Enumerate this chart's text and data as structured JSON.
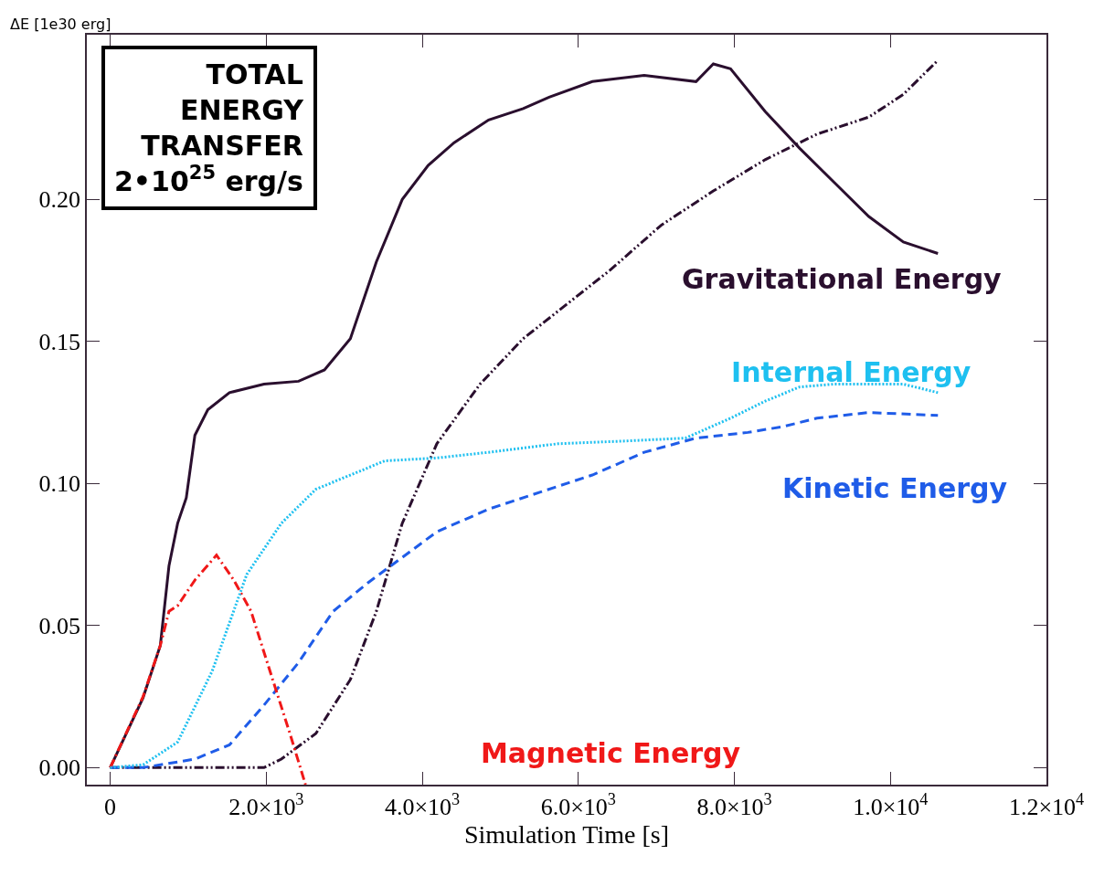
{
  "chart_data": {
    "type": "line",
    "xlabel": "Simulation Time [s]",
    "ylabel": "ΔE [1e30 erg]",
    "xlim": [
      -300,
      12000
    ],
    "ylim": [
      -0.006,
      0.258
    ],
    "xticks": [
      0,
      {
        "value": 2000,
        "label": "2.0×10$^{3}$"
      },
      {
        "value": 4000,
        "label": "4.0×10$^{3}$"
      },
      {
        "value": 6000,
        "label": "6.0×10$^{3}$"
      },
      {
        "value": 8000,
        "label": "8.0×10$^{3}$"
      },
      {
        "value": 10000,
        "label": "1.0×10$^{4}$"
      },
      {
        "value": 12000,
        "label": "1.2×10$^{4}$"
      }
    ],
    "yticks": [
      {
        "value": 0,
        "label": "0.00"
      },
      {
        "value": 0.05,
        "label": "0.05"
      },
      {
        "value": 0.1,
        "label": "0.10"
      },
      {
        "value": 0.15,
        "label": "0.15"
      },
      {
        "value": 0.2,
        "label": "0.20"
      }
    ],
    "grid": false,
    "legend": false,
    "marker": "none",
    "annotations": [
      "TOTAL ENERGY TRANSFER",
      "2•10$^{25}$ erg/s"
    ],
    "series": [
      {
        "color": "#2a0f2e",
        "line_style": "solid",
        "x": [
          0,
          421,
          642,
          753,
          864,
          975,
          1085,
          1251,
          1528,
          1971,
          2414,
          2746,
          3078,
          3411,
          3743,
          4075,
          4408,
          4850,
          5293,
          5626,
          6179,
          6844,
          7508,
          7730,
          7951,
          8394,
          8837,
          9280,
          9723,
          10166,
          10609
        ],
        "values": [
          0,
          0.0246,
          0.043,
          0.071,
          0.086,
          0.095,
          0.117,
          0.126,
          0.132,
          0.135,
          0.136,
          0.14,
          0.151,
          0.178,
          0.2,
          0.212,
          0.22,
          0.228,
          0.232,
          0.236,
          0.2415,
          0.2437,
          0.2415,
          0.2477,
          0.246,
          0.231,
          0.218,
          0.206,
          0.194,
          0.185,
          0.181
        ]
      },
      {
        "name": "Gravitational Energy",
        "color": "#2a0f2e",
        "line_style": "dashdotdot",
        "x": [
          0,
          1000,
          1971,
          2193,
          2636,
          3078,
          3411,
          3743,
          4186,
          4740,
          5293,
          5847,
          6401,
          7065,
          7730,
          8394,
          9059,
          9723,
          10166,
          10609
        ],
        "values": [
          0,
          0,
          0,
          0.003,
          0.012,
          0.031,
          0.055,
          0.086,
          0.114,
          0.135,
          0.151,
          0.163,
          0.175,
          0.191,
          0.203,
          0.214,
          0.223,
          0.229,
          0.237,
          0.249
        ]
      },
      {
        "name": "Internal Energy",
        "color": "#1ec0f0",
        "line_style": "dotted",
        "x": [
          0,
          421,
          864,
          1307,
          1750,
          2193,
          2636,
          3078,
          3521,
          4186,
          4850,
          5736,
          6622,
          7373,
          7951,
          8394,
          8837,
          9280,
          9723,
          10166,
          10609
        ],
        "values": [
          0,
          0.001,
          0.009,
          0.034,
          0.068,
          0.086,
          0.098,
          0.103,
          0.108,
          0.109,
          0.111,
          0.114,
          0.115,
          0.116,
          0.123,
          0.129,
          0.134,
          0.135,
          0.135,
          0.135,
          0.132
        ]
      },
      {
        "name": "Kinetic Energy",
        "color": "#1f5ce8",
        "line_style": "dashed",
        "x": [
          0,
          421,
          1085,
          1528,
          1971,
          2414,
          2857,
          3300,
          3743,
          4186,
          4850,
          5515,
          6179,
          6844,
          7508,
          8173,
          8616,
          9059,
          9723,
          10609
        ],
        "values": [
          0,
          0,
          0.003,
          0.008,
          0.022,
          0.037,
          0.055,
          0.065,
          0.074,
          0.083,
          0.091,
          0.097,
          0.103,
          0.111,
          0.116,
          0.118,
          0.12,
          0.123,
          0.125,
          0.124
        ]
      },
      {
        "name": "Magnetic Energy",
        "color": "#f01818",
        "line_style": "dashdot",
        "x": [
          0,
          421,
          642,
          753,
          864,
          1085,
          1362,
          1584,
          1805,
          2082,
          2303,
          2503
        ],
        "values": [
          0,
          0.025,
          0.043,
          0.055,
          0.057,
          0.066,
          0.0748,
          0.066,
          0.055,
          0.031,
          0.012,
          -0.006
        ]
      }
    ]
  }
}
